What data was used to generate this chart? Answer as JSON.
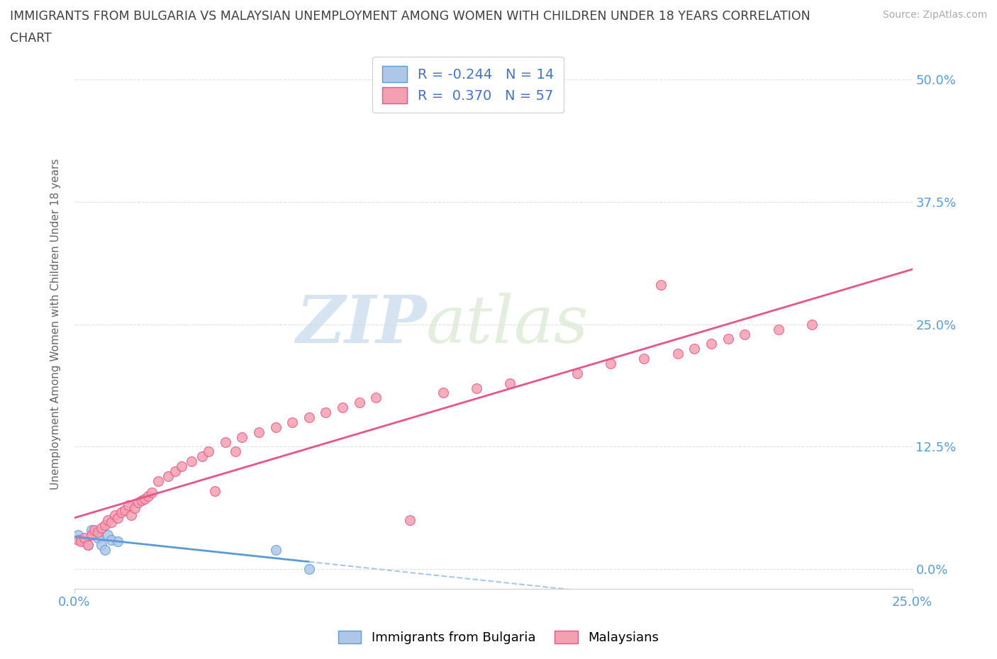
{
  "title_line1": "IMMIGRANTS FROM BULGARIA VS MALAYSIAN UNEMPLOYMENT AMONG WOMEN WITH CHILDREN UNDER 18 YEARS CORRELATION",
  "title_line2": "CHART",
  "source": "Source: ZipAtlas.com",
  "ylabel_label": "Unemployment Among Women with Children Under 18 years",
  "legend_entry1": "R = -0.244   N = 14",
  "legend_entry2": "R =  0.370   N = 57",
  "legend_label1": "Immigrants from Bulgaria",
  "legend_label2": "Malaysians",
  "color_bulgaria": "#aec6e8",
  "color_malaysia": "#f4a0b0",
  "color_line_bulgaria_solid": "#5b9bd5",
  "color_line_bulgaria_dash": "#a8c8e8",
  "color_line_malaysia": "#e8548a",
  "bg_color": "#ffffff",
  "watermark": "ZIPatlas",
  "bulgaria_x": [
    0.001,
    0.002,
    0.003,
    0.004,
    0.005,
    0.006,
    0.007,
    0.008,
    0.009,
    0.01,
    0.011,
    0.013,
    0.06,
    0.07
  ],
  "bulgaria_y": [
    0.035,
    0.03,
    0.028,
    0.025,
    0.04,
    0.038,
    0.032,
    0.025,
    0.02,
    0.035,
    0.03,
    0.028,
    0.02,
    0.0
  ],
  "malaysia_x": [
    0.001,
    0.002,
    0.003,
    0.004,
    0.005,
    0.006,
    0.007,
    0.008,
    0.009,
    0.01,
    0.011,
    0.012,
    0.013,
    0.014,
    0.015,
    0.016,
    0.017,
    0.018,
    0.019,
    0.02,
    0.021,
    0.022,
    0.023,
    0.025,
    0.028,
    0.03,
    0.032,
    0.035,
    0.038,
    0.04,
    0.042,
    0.045,
    0.048,
    0.05,
    0.055,
    0.06,
    0.065,
    0.07,
    0.075,
    0.08,
    0.085,
    0.09,
    0.1,
    0.11,
    0.12,
    0.13,
    0.15,
    0.16,
    0.17,
    0.175,
    0.18,
    0.185,
    0.19,
    0.195,
    0.2,
    0.21,
    0.22
  ],
  "malaysia_y": [
    0.03,
    0.028,
    0.032,
    0.025,
    0.035,
    0.04,
    0.038,
    0.042,
    0.045,
    0.05,
    0.048,
    0.055,
    0.052,
    0.058,
    0.06,
    0.065,
    0.055,
    0.062,
    0.068,
    0.07,
    0.072,
    0.075,
    0.078,
    0.09,
    0.095,
    0.1,
    0.105,
    0.11,
    0.115,
    0.12,
    0.08,
    0.13,
    0.12,
    0.135,
    0.14,
    0.145,
    0.15,
    0.155,
    0.16,
    0.165,
    0.17,
    0.175,
    0.05,
    0.18,
    0.185,
    0.19,
    0.2,
    0.21,
    0.215,
    0.29,
    0.22,
    0.225,
    0.23,
    0.235,
    0.24,
    0.245,
    0.25
  ],
  "xlim": [
    0.0,
    0.25
  ],
  "ylim": [
    -0.02,
    0.52
  ],
  "grid_color": "#e0e0e0",
  "watermark_color": "#d0dde8",
  "title_color": "#404040",
  "tick_color": "#5b9bd5",
  "ytick_vals": [
    0.0,
    0.125,
    0.25,
    0.375,
    0.5
  ],
  "ytick_labels": [
    "0.0%",
    "12.5%",
    "25.0%",
    "37.5%",
    "50.0%"
  ],
  "xtick_vals": [
    0.0,
    0.25
  ],
  "xtick_labels": [
    "0.0%",
    "25.0%"
  ]
}
